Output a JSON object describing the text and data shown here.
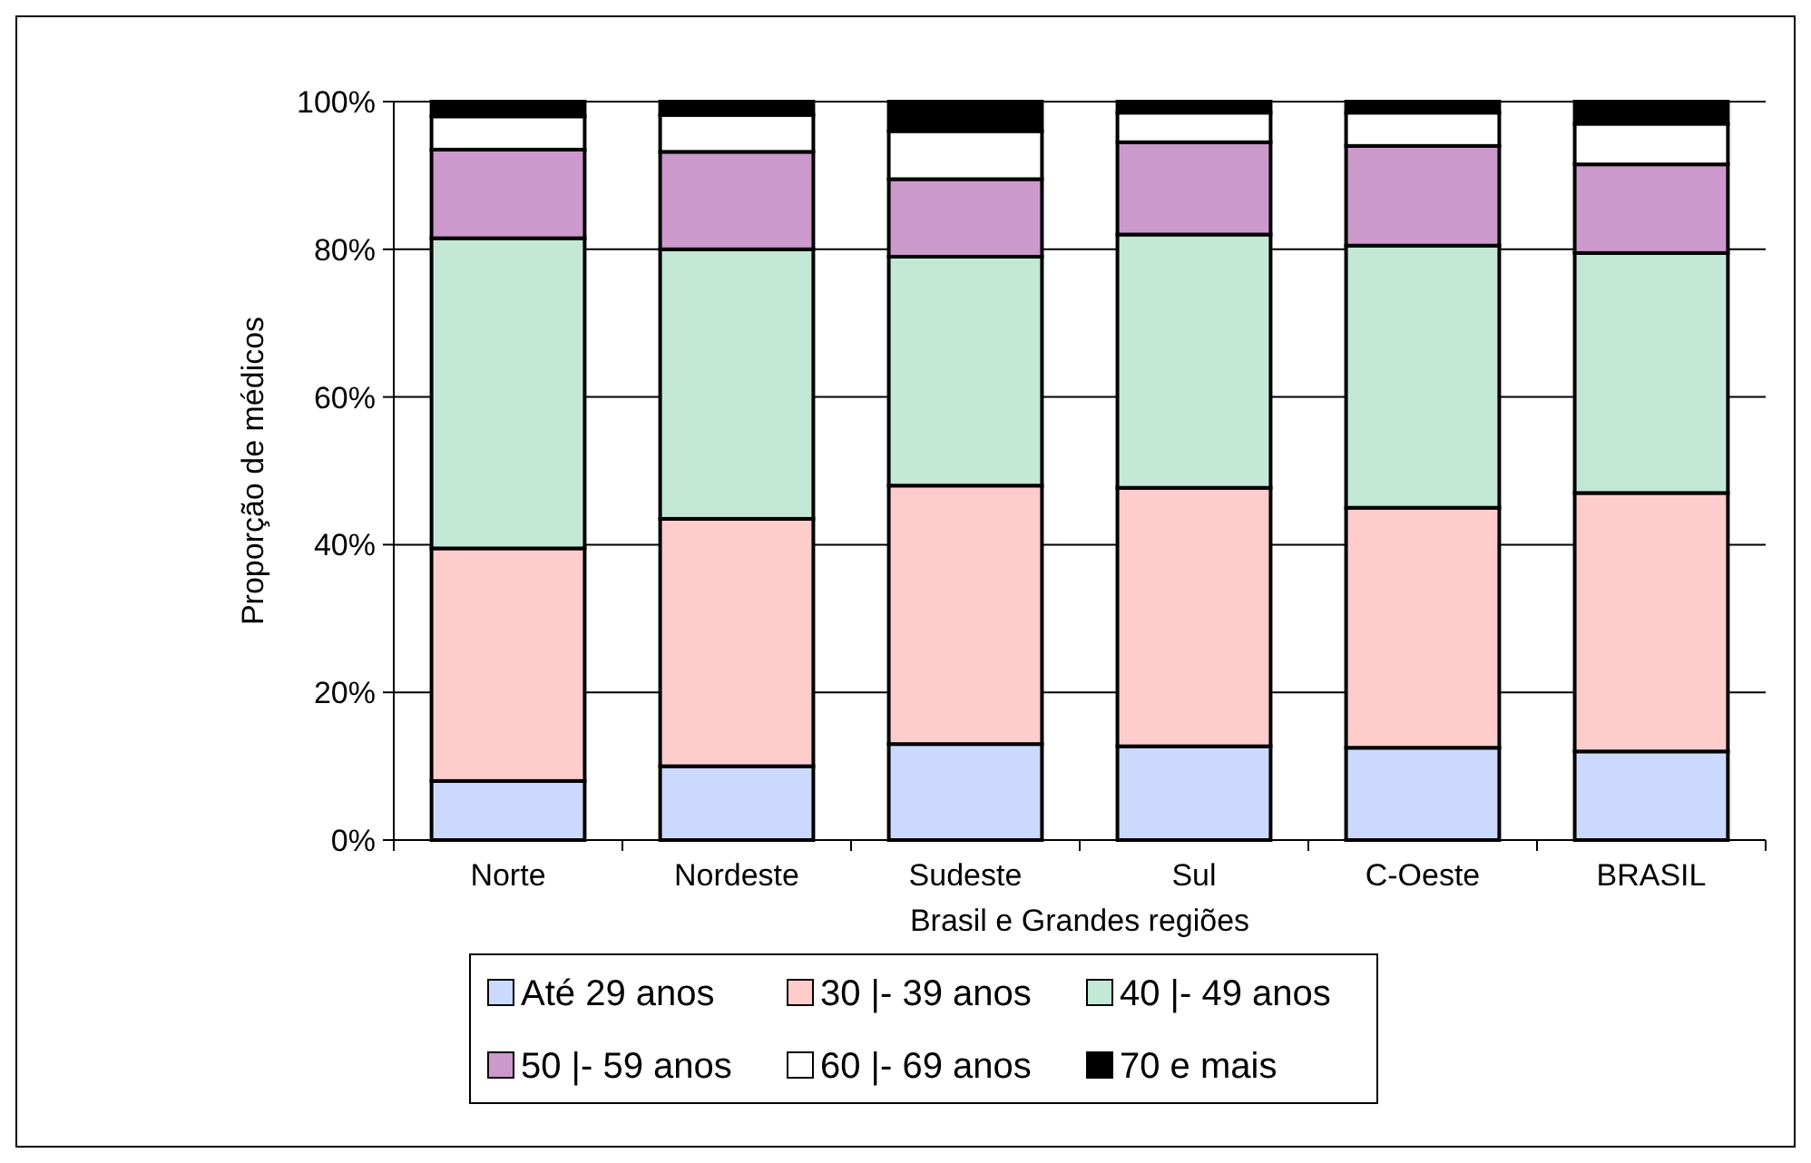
{
  "chart_data": {
    "type": "bar",
    "stacked": true,
    "xlabel": "Brasil e Grandes regiões",
    "ylabel": "Proporção de médicos",
    "categories": [
      "Norte",
      "Nordeste",
      "Sudeste",
      "Sul",
      "C-Oeste",
      "BRASIL"
    ],
    "series": [
      {
        "name": "Até 29 anos",
        "color": "#ccd9ff",
        "values": [
          8,
          10,
          13,
          12.7,
          12.5,
          12
        ]
      },
      {
        "name": "30 |- 39 anos",
        "color": "#ffcccc",
        "values": [
          31.5,
          33.5,
          35,
          35,
          32.5,
          35
        ]
      },
      {
        "name": "40 |- 49 anos",
        "color": "#c4e8d6",
        "values": [
          42,
          36.5,
          31,
          34.3,
          35.5,
          32.5
        ]
      },
      {
        "name": "50 |- 59 anos",
        "color": "#cc99cc",
        "values": [
          12,
          13.2,
          10.5,
          12.5,
          13.5,
          12
        ]
      },
      {
        "name": "60 |- 69 anos",
        "color": "#ffffff",
        "values": [
          4.5,
          5,
          6.5,
          4,
          4.5,
          5.5
        ]
      },
      {
        "name": "70 e mais",
        "color": "#000000",
        "values": [
          2,
          1.8,
          4,
          1.5,
          1.5,
          3
        ]
      }
    ],
    "ylim": [
      0,
      100
    ],
    "yticks": [
      {
        "value": 0,
        "label": "0%"
      },
      {
        "value": 20,
        "label": "20%"
      },
      {
        "value": 40,
        "label": "40%"
      },
      {
        "value": 60,
        "label": "60%"
      },
      {
        "value": 80,
        "label": "80%"
      },
      {
        "value": 100,
        "label": "100%"
      }
    ],
    "grid": "y",
    "legend": "bottom"
  }
}
